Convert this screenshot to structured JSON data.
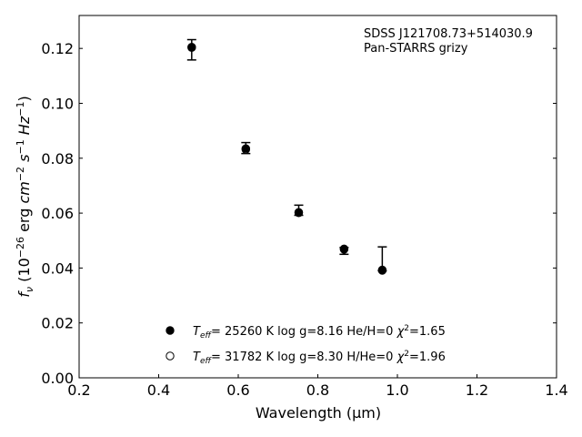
{
  "chart_data": {
    "type": "scatter",
    "xlabel": "Wavelength (μm)",
    "ylabel_parts": [
      "f",
      "ν",
      " (10",
      "−26",
      " erg ",
      "cm",
      "−2",
      " ",
      "s",
      "−1",
      " ",
      "Hz",
      "−1",
      ")"
    ],
    "xlim": [
      0.2,
      1.4
    ],
    "ylim": [
      0.0,
      0.132
    ],
    "x_ticks": [
      0.2,
      0.4,
      0.6,
      0.8,
      1.0,
      1.2,
      1.4
    ],
    "x_tick_labels": [
      "0.2",
      "0.4",
      "0.6",
      "0.8",
      "1.0",
      "1.2",
      "1.4"
    ],
    "y_ticks": [
      0.0,
      0.02,
      0.04,
      0.06,
      0.08,
      0.1,
      0.12
    ],
    "y_tick_labels": [
      "0.00",
      "0.02",
      "0.04",
      "0.06",
      "0.08",
      "0.10",
      "0.12"
    ],
    "annotations": [
      "SDSS J121708.73+514030.9",
      "Pan-STARRS grizy"
    ],
    "observed": {
      "x": [
        0.483,
        0.619,
        0.752,
        0.866,
        0.962
      ],
      "y": [
        0.1195,
        0.0832,
        0.0604,
        0.0467,
        0.039
      ],
      "err_low": [
        0.0037,
        0.0015,
        0.0012,
        0.0017,
        0.0
      ],
      "err_high": [
        0.0037,
        0.0025,
        0.0025,
        0.0008,
        0.0087
      ]
    },
    "models": [
      {
        "marker": "filled-circle",
        "teff_label": "T",
        "teff_sub": "eff",
        "text": "= 25260 K  log g=8.16  He/H=0  ",
        "chi_sym": "χ",
        "chi_sup": "2",
        "chi_val": "=1.65",
        "x": [
          0.483,
          0.619,
          0.752,
          0.866,
          0.962
        ],
        "y": [
          0.1205,
          0.0835,
          0.0601,
          0.047,
          0.0391
        ]
      },
      {
        "marker": "open-circle",
        "teff_label": "T",
        "teff_sub": "eff",
        "text": "= 31782 K  log g=8.30  H/He=0  ",
        "chi_sym": "χ",
        "chi_sup": "2",
        "chi_val": "=1.96",
        "x": [
          0.483,
          0.619,
          0.752,
          0.866,
          0.962
        ],
        "y": [
          0.1203,
          0.0832,
          0.0603,
          0.0468,
          0.0393
        ]
      }
    ],
    "legend_position": "bottom-center",
    "grid": false,
    "colors": {
      "marker": "#000000",
      "background": "#ffffff"
    }
  }
}
